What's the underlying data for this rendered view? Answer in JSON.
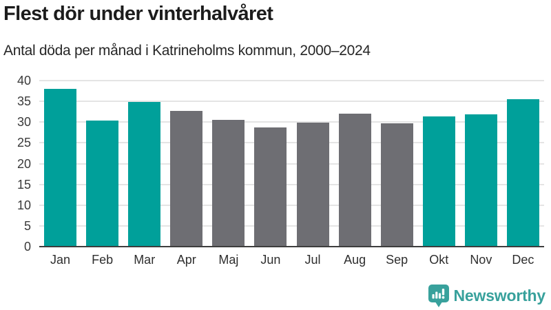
{
  "header": {
    "title": "Flest dör under vinterhalvåret",
    "subtitle": "Antal döda per månad i Katrineholms kommun, 2000–2024"
  },
  "chart_data": {
    "type": "bar",
    "title": "Flest dör under vinterhalvåret",
    "subtitle": "Antal döda per månad i Katrineholms kommun, 2000–2024",
    "categories": [
      "Jan",
      "Feb",
      "Mar",
      "Apr",
      "Maj",
      "Jun",
      "Jul",
      "Aug",
      "Sep",
      "Okt",
      "Nov",
      "Dec"
    ],
    "values": [
      38.0,
      30.3,
      34.9,
      32.7,
      30.5,
      28.7,
      29.9,
      32.0,
      29.7,
      31.3,
      31.8,
      35.5
    ],
    "bar_colors": [
      "#00a09a",
      "#00a09a",
      "#00a09a",
      "#6e6e73",
      "#6e6e73",
      "#6e6e73",
      "#6e6e73",
      "#6e6e73",
      "#6e6e73",
      "#00a09a",
      "#00a09a",
      "#00a09a"
    ],
    "highlighted_months": [
      "Jan",
      "Feb",
      "Mar",
      "Okt",
      "Nov",
      "Dec"
    ],
    "xlabel": "",
    "ylabel": "",
    "ylim": [
      0,
      40
    ],
    "yticks": [
      0,
      5,
      10,
      15,
      20,
      25,
      30,
      35,
      40
    ],
    "grid": true,
    "legend": false
  },
  "footer": {
    "brand": "Newsworthy",
    "logo_icon": "newsworthy-chart-bubble-icon"
  },
  "colors": {
    "accent_teal": "#00a09a",
    "neutral_gray": "#6e6e73",
    "gridline": "#e4e4e4",
    "axis_line": "#3d3d3d",
    "title_text": "#1c1c1c",
    "tick_text": "#3a3a3a",
    "brand_teal": "#38a19c"
  }
}
